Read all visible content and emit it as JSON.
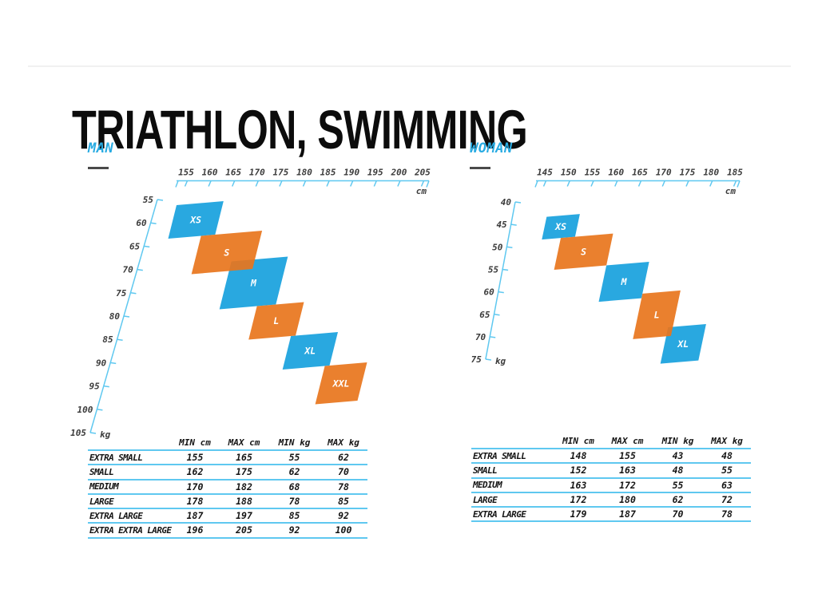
{
  "page_title": "TRIATHLON, SWIMMING",
  "colors": {
    "blue": "#29A8E0",
    "orange": "#E8751C",
    "axis_cyan": "#5fc8f0",
    "heading_cyan": "#29ABE2",
    "tick_text": "#3b3b3b",
    "title_black": "#0c0c0c",
    "size_label_white": "#ffffff"
  },
  "chart_data": [
    {
      "id": "man",
      "type": "area",
      "title": "MAN",
      "xlabel": "cm",
      "ylabel": "kg",
      "x_range": [
        155,
        205
      ],
      "y_range": [
        55,
        105
      ],
      "x_ticks": [
        155,
        160,
        165,
        170,
        175,
        180,
        185,
        190,
        195,
        200,
        205
      ],
      "y_ticks": [
        55,
        60,
        65,
        70,
        75,
        80,
        85,
        90,
        95,
        100,
        105
      ],
      "table_headers": [
        "MIN cm",
        "MAX cm",
        "MIN kg",
        "MAX kg"
      ],
      "series": [
        {
          "name": "XS",
          "label": "EXTRA SMALL",
          "min_cm": 155,
          "max_cm": 165,
          "min_kg": 55,
          "max_kg": 62,
          "color": "#29A8E0"
        },
        {
          "name": "S",
          "label": "SMALL",
          "min_cm": 162,
          "max_cm": 175,
          "min_kg": 62,
          "max_kg": 70,
          "color": "#E8751C"
        },
        {
          "name": "M",
          "label": "MEDIUM",
          "min_cm": 170,
          "max_cm": 182,
          "min_kg": 68,
          "max_kg": 78,
          "color": "#29A8E0"
        },
        {
          "name": "L",
          "label": "LARGE",
          "min_cm": 178,
          "max_cm": 188,
          "min_kg": 78,
          "max_kg": 85,
          "color": "#E8751C"
        },
        {
          "name": "XL",
          "label": "EXTRA LARGE",
          "min_cm": 187,
          "max_cm": 197,
          "min_kg": 85,
          "max_kg": 92,
          "color": "#29A8E0"
        },
        {
          "name": "XXL",
          "label": "EXTRA EXTRA LARGE",
          "min_cm": 196,
          "max_cm": 205,
          "min_kg": 92,
          "max_kg": 100,
          "color": "#E8751C"
        }
      ]
    },
    {
      "id": "woman",
      "type": "area",
      "title": "WOMAN",
      "xlabel": "cm",
      "ylabel": "kg",
      "x_range": [
        145,
        185
      ],
      "y_range": [
        40,
        75
      ],
      "x_ticks": [
        145,
        150,
        155,
        160,
        165,
        170,
        175,
        180,
        185
      ],
      "y_ticks": [
        40,
        45,
        50,
        55,
        60,
        65,
        70,
        75
      ],
      "table_headers": [
        "MIN cm",
        "MAX cm",
        "MIN kg",
        "MAX kg"
      ],
      "series": [
        {
          "name": "XS",
          "label": "EXTRA SMALL",
          "min_cm": 148,
          "max_cm": 155,
          "min_kg": 43,
          "max_kg": 48,
          "color": "#29A8E0"
        },
        {
          "name": "S",
          "label": "SMALL",
          "min_cm": 152,
          "max_cm": 163,
          "min_kg": 48,
          "max_kg": 55,
          "color": "#E8751C"
        },
        {
          "name": "M",
          "label": "MEDIUM",
          "min_cm": 163,
          "max_cm": 172,
          "min_kg": 55,
          "max_kg": 63,
          "color": "#29A8E0"
        },
        {
          "name": "L",
          "label": "LARGE",
          "min_cm": 172,
          "max_cm": 180,
          "min_kg": 62,
          "max_kg": 72,
          "color": "#E8751C"
        },
        {
          "name": "XL",
          "label": "EXTRA LARGE",
          "min_cm": 179,
          "max_cm": 187,
          "min_kg": 70,
          "max_kg": 78,
          "color": "#29A8E0"
        }
      ]
    }
  ]
}
